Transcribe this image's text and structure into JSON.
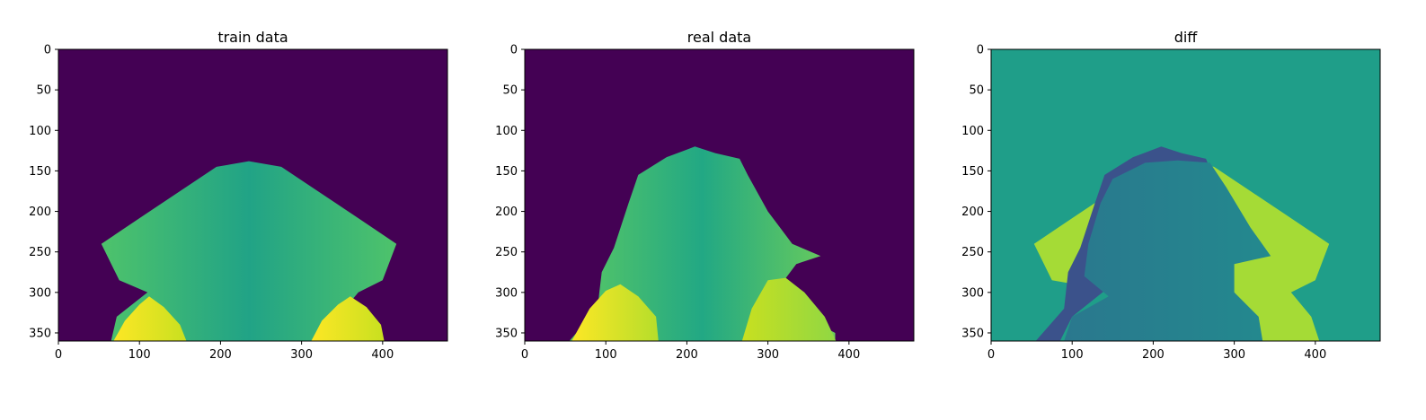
{
  "chart_data": [
    {
      "type": "heatmap",
      "title": "train data",
      "xlim": [
        0,
        480
      ],
      "ylim": [
        360,
        0
      ],
      "xticks": [
        0,
        100,
        200,
        300,
        400
      ],
      "yticks": [
        0,
        50,
        100,
        150,
        200,
        250,
        300,
        350
      ],
      "colormap": "viridis",
      "background_color": "#440154",
      "regions": [
        {
          "name": "body",
          "fill_stops": [
            "#4ec36b",
            "#21a386",
            "#4ec36b"
          ],
          "polygon": [
            [
              65,
              360
            ],
            [
              72,
              330
            ],
            [
              110,
              300
            ],
            [
              75,
              285
            ],
            [
              53,
              240
            ],
            [
              105,
              205
            ],
            [
              150,
              175
            ],
            [
              195,
              145
            ],
            [
              235,
              138
            ],
            [
              275,
              145
            ],
            [
              320,
              175
            ],
            [
              365,
              205
            ],
            [
              417,
              240
            ],
            [
              400,
              285
            ],
            [
              370,
              300
            ],
            [
              345,
              330
            ],
            [
              350,
              360
            ]
          ]
        },
        {
          "name": "left-lobe",
          "fill_stops": [
            "#fde725",
            "#c8e020"
          ],
          "polygon": [
            [
              68,
              360
            ],
            [
              82,
              335
            ],
            [
              100,
              315
            ],
            [
              112,
              305
            ],
            [
              130,
              318
            ],
            [
              150,
              340
            ],
            [
              158,
              360
            ]
          ]
        },
        {
          "name": "right-lobe",
          "fill_stops": [
            "#fde725",
            "#c8e020"
          ],
          "polygon": [
            [
              312,
              360
            ],
            [
              325,
              335
            ],
            [
              345,
              315
            ],
            [
              360,
              305
            ],
            [
              380,
              318
            ],
            [
              398,
              340
            ],
            [
              402,
              360
            ]
          ]
        }
      ]
    },
    {
      "type": "heatmap",
      "title": "real data",
      "xlim": [
        0,
        480
      ],
      "ylim": [
        360,
        0
      ],
      "xticks": [
        0,
        100,
        200,
        300,
        400
      ],
      "yticks": [
        0,
        50,
        100,
        150,
        200,
        250,
        300,
        350
      ],
      "colormap": "viridis",
      "background_color": "#440154",
      "regions": [
        {
          "name": "body",
          "fill_stops": [
            "#5ac864",
            "#22a884",
            "#6ccd5a"
          ],
          "polygon": [
            [
              55,
              360
            ],
            [
              90,
              320
            ],
            [
              92,
              300
            ],
            [
              95,
              275
            ],
            [
              110,
              245
            ],
            [
              128,
              190
            ],
            [
              140,
              155
            ],
            [
              175,
              133
            ],
            [
              210,
              120
            ],
            [
              235,
              128
            ],
            [
              265,
              135
            ],
            [
              275,
              155
            ],
            [
              300,
              200
            ],
            [
              330,
              240
            ],
            [
              365,
              255
            ],
            [
              335,
              265
            ],
            [
              320,
              285
            ],
            [
              345,
              330
            ],
            [
              383,
              350
            ],
            [
              383,
              360
            ]
          ]
        },
        {
          "name": "left-lobe",
          "fill_stops": [
            "#fde725",
            "#b5de2b"
          ],
          "polygon": [
            [
              58,
              360
            ],
            [
              80,
              320
            ],
            [
              100,
              298
            ],
            [
              118,
              290
            ],
            [
              140,
              305
            ],
            [
              162,
              330
            ],
            [
              165,
              360
            ]
          ]
        },
        {
          "name": "right-lobe",
          "fill_stops": [
            "#c8e020",
            "#90d743"
          ],
          "polygon": [
            [
              268,
              360
            ],
            [
              280,
              320
            ],
            [
              300,
              285
            ],
            [
              322,
              282
            ],
            [
              345,
              300
            ],
            [
              370,
              330
            ],
            [
              384,
              360
            ]
          ]
        }
      ]
    },
    {
      "type": "heatmap",
      "title": "diff",
      "xlim": [
        0,
        480
      ],
      "ylim": [
        360,
        0
      ],
      "xticks": [
        0,
        100,
        200,
        300,
        400
      ],
      "yticks": [
        0,
        50,
        100,
        150,
        200,
        250,
        300,
        350
      ],
      "colormap": "viridis",
      "background_color": "#1f9e89",
      "regions": [
        {
          "name": "train-only-wings",
          "fill_stops": [
            "#a5db36",
            "#a5db36"
          ],
          "polygon": [
            [
              53,
              240
            ],
            [
              105,
              205
            ],
            [
              150,
              175
            ],
            [
              195,
              145
            ],
            [
              235,
              138
            ],
            [
              275,
              145
            ],
            [
              320,
              175
            ],
            [
              365,
              205
            ],
            [
              417,
              240
            ],
            [
              400,
              285
            ],
            [
              370,
              300
            ],
            [
              395,
              330
            ],
            [
              405,
              360
            ],
            [
              330,
              360
            ],
            [
              300,
              300
            ],
            [
              160,
              300
            ],
            [
              75,
              285
            ]
          ]
        },
        {
          "name": "real-only-edges",
          "fill_stops": [
            "#3b528b",
            "#3b528b"
          ],
          "polygon": [
            [
              55,
              360
            ],
            [
              90,
              320
            ],
            [
              95,
              275
            ],
            [
              110,
              245
            ],
            [
              128,
              190
            ],
            [
              140,
              155
            ],
            [
              175,
              133
            ],
            [
              210,
              120
            ],
            [
              235,
              128
            ],
            [
              265,
              135
            ],
            [
              275,
              160
            ],
            [
              180,
              165
            ],
            [
              150,
              290
            ],
            [
              100,
              330
            ],
            [
              85,
              360
            ]
          ]
        },
        {
          "name": "overlap",
          "fill_stops": [
            "#2a788e",
            "#23898e"
          ],
          "polygon": [
            [
              90,
              360
            ],
            [
              100,
              330
            ],
            [
              145,
              305
            ],
            [
              115,
              280
            ],
            [
              120,
              240
            ],
            [
              135,
              190
            ],
            [
              150,
              160
            ],
            [
              190,
              140
            ],
            [
              230,
              137
            ],
            [
              270,
              140
            ],
            [
              290,
              170
            ],
            [
              320,
              220
            ],
            [
              345,
              255
            ],
            [
              300,
              265
            ],
            [
              300,
              300
            ],
            [
              330,
              330
            ],
            [
              335,
              360
            ]
          ]
        }
      ]
    }
  ]
}
